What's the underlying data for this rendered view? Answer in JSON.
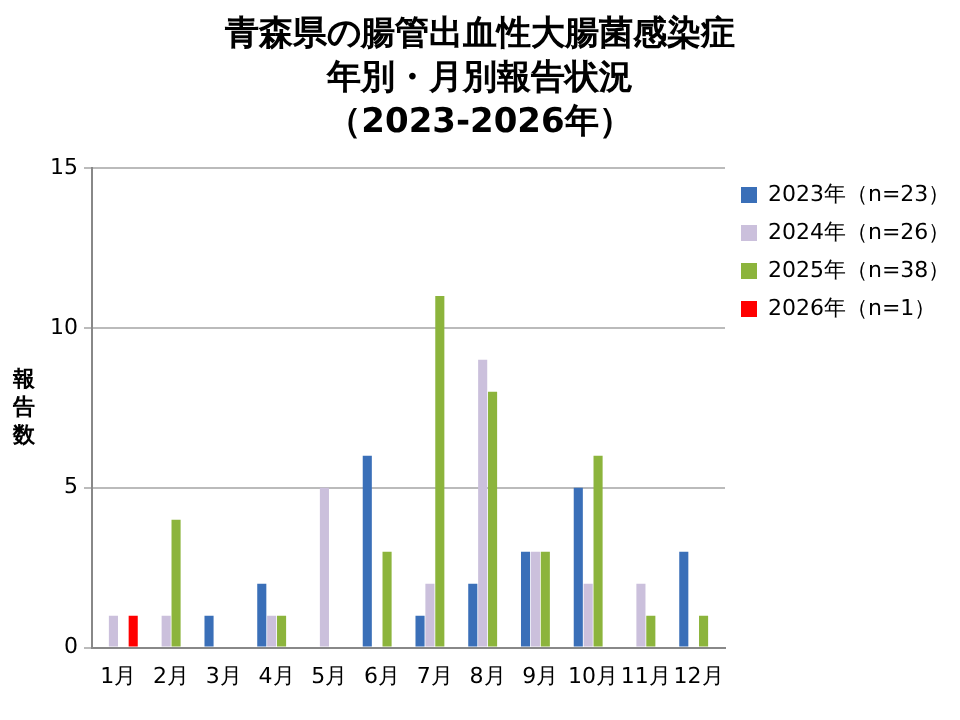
{
  "chart_data": {
    "type": "bar",
    "title": "青森県の腸管出血性大腸菌感染症年別・月別報告状況",
    "subtitle": "（2023-2026年）",
    "ylabel": "報告数",
    "categories": [
      "1月",
      "2月",
      "3月",
      "4月",
      "5月",
      "6月",
      "7月",
      "8月",
      "9月",
      "10月",
      "11月",
      "12月"
    ],
    "series": [
      {
        "name": "2023年（n=23）",
        "color": "#3a6fb8",
        "values": [
          0,
          0,
          1,
          2,
          0,
          6,
          1,
          2,
          3,
          5,
          0,
          3
        ]
      },
      {
        "name": "2024年（n=26）",
        "color": "#cbc0dc",
        "values": [
          1,
          1,
          0,
          1,
          5,
          0,
          2,
          9,
          3,
          2,
          2,
          0
        ]
      },
      {
        "name": "2025年（n=38）",
        "color": "#8cb43c",
        "values": [
          0,
          4,
          0,
          1,
          0,
          3,
          11,
          8,
          3,
          6,
          1,
          1
        ]
      },
      {
        "name": "2026年（n=1）",
        "color": "#ff0000",
        "values": [
          1,
          0,
          0,
          0,
          0,
          0,
          0,
          0,
          0,
          0,
          0,
          0
        ]
      }
    ],
    "ylim": [
      0,
      15
    ],
    "yticks": [
      0,
      5,
      10,
      15
    ],
    "grid": "y",
    "legend": "right"
  }
}
